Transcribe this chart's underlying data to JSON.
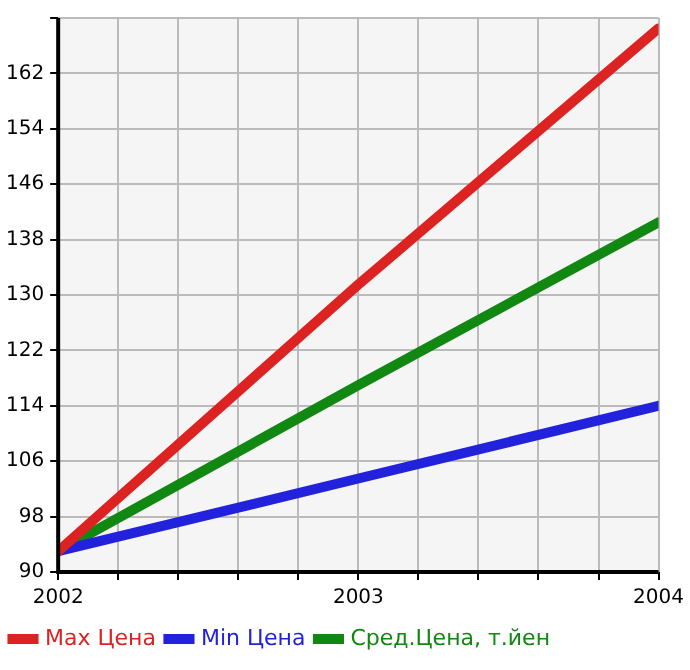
{
  "chart_data": {
    "type": "line",
    "x": [
      2002,
      2003,
      2004
    ],
    "series": [
      {
        "name": "Max Цена",
        "color": "#dd2222",
        "values": [
          93,
          131.5,
          168.5
        ]
      },
      {
        "name": "Min Цена",
        "color": "#2222dd",
        "values": [
          93,
          103.5,
          114
        ]
      },
      {
        "name": "Сред.Цена, т.йен",
        "color": "#118811",
        "values": [
          93,
          117,
          140.5
        ]
      }
    ],
    "xlim": [
      2002,
      2004
    ],
    "xticks": [
      2002,
      {
        "value": 2002.2,
        "label": null
      },
      {
        "value": 2002.4,
        "label": null
      },
      {
        "value": 2002.6,
        "label": null
      },
      {
        "value": 2002.8,
        "label": null
      },
      2003,
      {
        "value": 2003.2,
        "label": null
      },
      {
        "value": 2003.4,
        "label": null
      },
      {
        "value": 2003.6,
        "label": null
      },
      {
        "value": 2003.8,
        "label": null
      },
      2004
    ],
    "ylim": [
      90,
      170
    ],
    "yticks": [
      90,
      98,
      106,
      114,
      122,
      130,
      138,
      146,
      154,
      162
    ],
    "grid": true,
    "legend": "bottom",
    "marker": "none",
    "line_style": "solid"
  }
}
